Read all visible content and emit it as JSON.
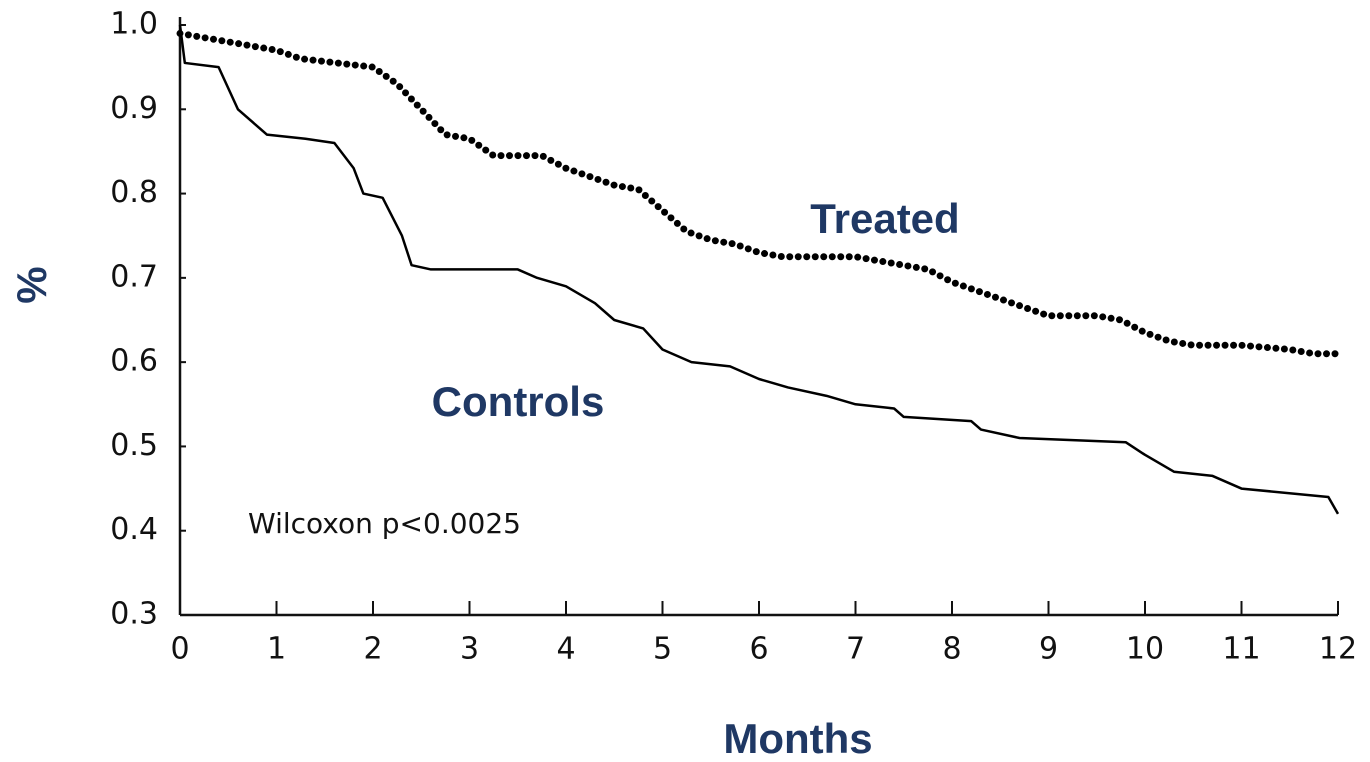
{
  "chart_data": {
    "type": "line",
    "xlabel": "Months",
    "ylabel": "%",
    "annotation": "Wilcoxon p<0.0025",
    "xlim": [
      0,
      12
    ],
    "ylim": [
      0.3,
      1.0
    ],
    "xticks": [
      0,
      1,
      2,
      3,
      4,
      5,
      6,
      7,
      8,
      9,
      10,
      11,
      12
    ],
    "yticks": [
      0.3,
      0.4,
      0.5,
      0.6,
      0.7,
      0.8,
      0.9,
      {
        "value": 1,
        "label": "1.0"
      }
    ],
    "series": [
      {
        "name": "Treated",
        "color": "#000000",
        "line_style": "dotted",
        "x": [
          0,
          0.5,
          1,
          1.25,
          2,
          2.25,
          2.5,
          2.75,
          3,
          3.25,
          3.75,
          4,
          4.5,
          4.75,
          5,
          5.25,
          5.5,
          5.75,
          6,
          6.25,
          6.5,
          7,
          7.25,
          7.5,
          7.75,
          8,
          8.25,
          8.5,
          8.75,
          9,
          9.5,
          9.75,
          10,
          10.25,
          10.5,
          11,
          11.5,
          11.75,
          12
        ],
        "values": [
          0.99,
          0.98,
          0.97,
          0.96,
          0.95,
          0.93,
          0.9,
          0.87,
          0.865,
          0.845,
          0.845,
          0.83,
          0.81,
          0.805,
          0.78,
          0.755,
          0.745,
          0.74,
          0.73,
          0.725,
          0.725,
          0.725,
          0.72,
          0.715,
          0.71,
          0.695,
          0.685,
          0.675,
          0.665,
          0.655,
          0.655,
          0.65,
          0.635,
          0.625,
          0.62,
          0.62,
          0.615,
          0.61,
          0.61
        ]
      },
      {
        "name": "Controls",
        "color": "#000000",
        "line_style": "solid",
        "x": [
          0,
          0.05,
          0.4,
          0.6,
          0.9,
          1.3,
          1.6,
          1.8,
          1.9,
          2.1,
          2.3,
          2.4,
          2.6,
          3.5,
          3.7,
          4,
          4.3,
          4.5,
          4.8,
          5,
          5.3,
          5.7,
          6,
          6.3,
          6.7,
          7,
          7.4,
          7.5,
          8.2,
          8.3,
          8.7,
          9.8,
          10,
          10.3,
          10.7,
          11,
          11.9,
          12
        ],
        "values": [
          1.0,
          0.955,
          0.95,
          0.9,
          0.87,
          0.865,
          0.86,
          0.83,
          0.8,
          0.795,
          0.75,
          0.715,
          0.71,
          0.71,
          0.7,
          0.69,
          0.67,
          0.65,
          0.64,
          0.615,
          0.6,
          0.595,
          0.58,
          0.57,
          0.56,
          0.55,
          0.545,
          0.535,
          0.53,
          0.52,
          0.51,
          0.505,
          0.49,
          0.47,
          0.465,
          0.45,
          0.44,
          0.42
        ]
      }
    ]
  }
}
